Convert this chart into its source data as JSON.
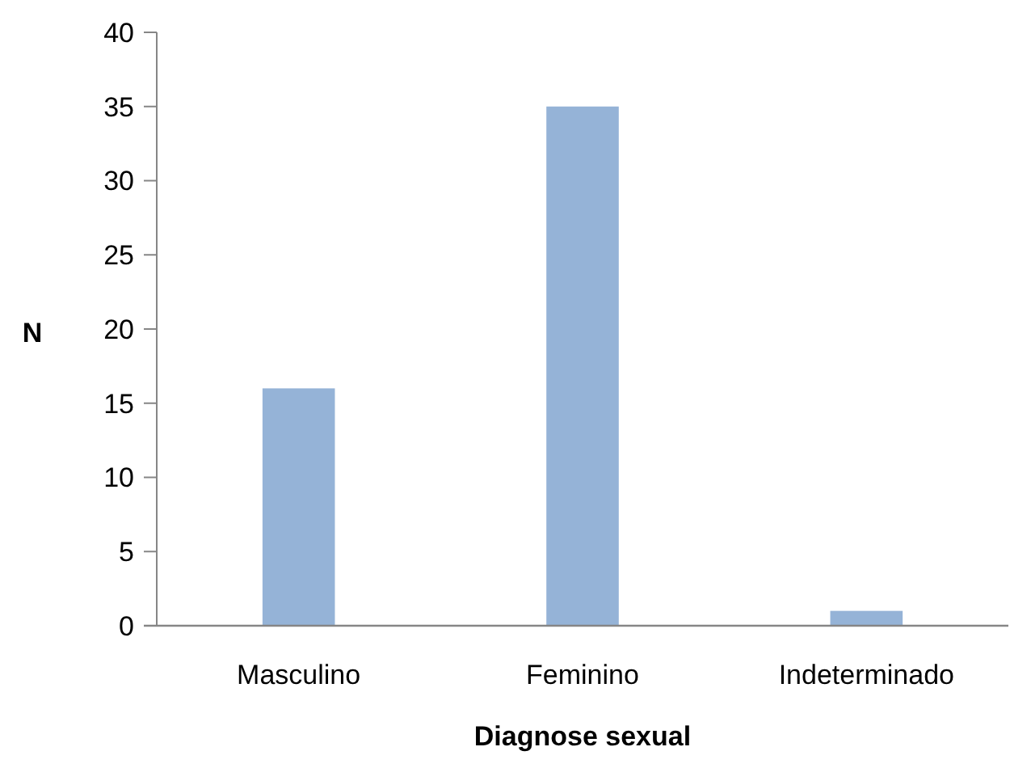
{
  "chart_data": {
    "type": "bar",
    "categories": [
      "Masculino",
      "Feminino",
      "Indeterminado"
    ],
    "values": [
      16,
      35,
      1
    ],
    "color": "#95b3d7",
    "xlabel": "Diagnose sexual",
    "ylabel": "N",
    "ylim": [
      0,
      40
    ],
    "yticks": [
      0,
      5,
      10,
      15,
      20,
      25,
      30,
      35,
      40
    ],
    "grid": false
  }
}
